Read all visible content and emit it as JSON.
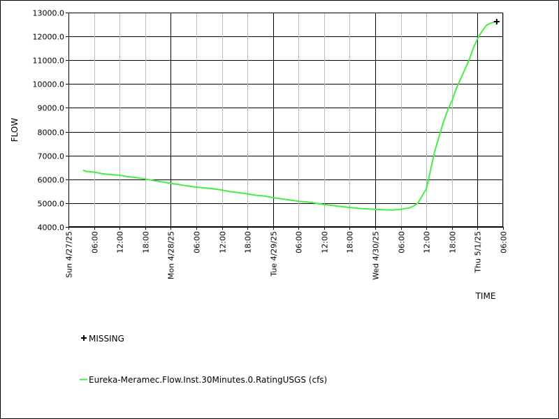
{
  "chart_data": {
    "type": "line",
    "xlabel": "TIME",
    "ylabel": "FLOW",
    "ylim": [
      4000,
      13000
    ],
    "xlim": [
      "2025-04-27T00:00",
      "2025-05-01T06:00"
    ],
    "grid": true,
    "legend_placement": "bottom-left",
    "y_ticks": [
      "4000.0",
      "5000.0",
      "6000.0",
      "7000.0",
      "8000.0",
      "9000.0",
      "10000.0",
      "11000.0",
      "12000.0",
      "13000.0"
    ],
    "x_ticks": [
      {
        "t": "2025-04-27T00:00",
        "label": "Sun 4/27/25",
        "major": true
      },
      {
        "t": "2025-04-27T06:00",
        "label": "06:00",
        "major": false
      },
      {
        "t": "2025-04-27T12:00",
        "label": "12:00",
        "major": false
      },
      {
        "t": "2025-04-27T18:00",
        "label": "18:00",
        "major": false
      },
      {
        "t": "2025-04-28T00:00",
        "label": "Mon 4/28/25",
        "major": true
      },
      {
        "t": "2025-04-28T06:00",
        "label": "06:00",
        "major": false
      },
      {
        "t": "2025-04-28T12:00",
        "label": "12:00",
        "major": false
      },
      {
        "t": "2025-04-28T18:00",
        "label": "18:00",
        "major": false
      },
      {
        "t": "2025-04-29T00:00",
        "label": "Tue 4/29/25",
        "major": true
      },
      {
        "t": "2025-04-29T06:00",
        "label": "06:00",
        "major": false
      },
      {
        "t": "2025-04-29T12:00",
        "label": "12:00",
        "major": false
      },
      {
        "t": "2025-04-29T18:00",
        "label": "18:00",
        "major": false
      },
      {
        "t": "2025-04-30T00:00",
        "label": "Wed 4/30/25",
        "major": true
      },
      {
        "t": "2025-04-30T06:00",
        "label": "06:00",
        "major": false
      },
      {
        "t": "2025-04-30T12:00",
        "label": "12:00",
        "major": false
      },
      {
        "t": "2025-04-30T18:00",
        "label": "18:00",
        "major": false
      },
      {
        "t": "2025-05-01T00:00",
        "label": "Thu 5/1/25",
        "major": true
      },
      {
        "t": "2025-05-01T06:00",
        "label": "06:00",
        "major": false
      }
    ],
    "series": [
      {
        "name": "Eureka-Meramec.Flow.Inst.30Minutes.0.RatingUSGS (cfs)",
        "color": "#44ee44",
        "points": [
          [
            "2025-04-27T03:30",
            6380
          ],
          [
            "2025-04-27T04:00",
            6340
          ],
          [
            "2025-04-27T06:00",
            6300
          ],
          [
            "2025-04-27T08:00",
            6230
          ],
          [
            "2025-04-27T10:00",
            6200
          ],
          [
            "2025-04-27T12:00",
            6170
          ],
          [
            "2025-04-27T14:00",
            6110
          ],
          [
            "2025-04-27T16:00",
            6070
          ],
          [
            "2025-04-27T18:00",
            6010
          ],
          [
            "2025-04-27T20:00",
            5950
          ],
          [
            "2025-04-27T22:00",
            5890
          ],
          [
            "2025-04-28T00:00",
            5830
          ],
          [
            "2025-04-28T02:00",
            5780
          ],
          [
            "2025-04-28T04:00",
            5720
          ],
          [
            "2025-04-28T06:00",
            5670
          ],
          [
            "2025-04-28T08:00",
            5640
          ],
          [
            "2025-04-28T10:00",
            5600
          ],
          [
            "2025-04-28T12:00",
            5550
          ],
          [
            "2025-04-28T14:00",
            5480
          ],
          [
            "2025-04-28T16:00",
            5440
          ],
          [
            "2025-04-28T18:00",
            5390
          ],
          [
            "2025-04-28T20:00",
            5330
          ],
          [
            "2025-04-28T22:00",
            5300
          ],
          [
            "2025-04-29T00:00",
            5230
          ],
          [
            "2025-04-29T02:00",
            5180
          ],
          [
            "2025-04-29T04:00",
            5130
          ],
          [
            "2025-04-29T06:00",
            5080
          ],
          [
            "2025-04-29T08:00",
            5050
          ],
          [
            "2025-04-29T10:00",
            5000
          ],
          [
            "2025-04-29T12:00",
            4940
          ],
          [
            "2025-04-29T14:00",
            4900
          ],
          [
            "2025-04-29T16:00",
            4860
          ],
          [
            "2025-04-29T18:00",
            4820
          ],
          [
            "2025-04-29T20:00",
            4780
          ],
          [
            "2025-04-29T22:00",
            4760
          ],
          [
            "2025-04-30T00:00",
            4740
          ],
          [
            "2025-04-30T02:00",
            4720
          ],
          [
            "2025-04-30T04:00",
            4710
          ],
          [
            "2025-04-30T06:00",
            4740
          ],
          [
            "2025-04-30T08:00",
            4800
          ],
          [
            "2025-04-30T09:00",
            4880
          ],
          [
            "2025-04-30T10:00",
            5000
          ],
          [
            "2025-04-30T11:00",
            5300
          ],
          [
            "2025-04-30T12:00",
            5600
          ],
          [
            "2025-04-30T13:00",
            6400
          ],
          [
            "2025-04-30T14:00",
            7200
          ],
          [
            "2025-04-30T15:00",
            7800
          ],
          [
            "2025-04-30T16:00",
            8400
          ],
          [
            "2025-04-30T17:00",
            8900
          ],
          [
            "2025-04-30T18:00",
            9300
          ],
          [
            "2025-04-30T19:00",
            9800
          ],
          [
            "2025-04-30T20:00",
            10200
          ],
          [
            "2025-04-30T21:00",
            10600
          ],
          [
            "2025-04-30T22:00",
            11000
          ],
          [
            "2025-04-30T23:00",
            11500
          ],
          [
            "2025-05-01T00:00",
            11900
          ],
          [
            "2025-05-01T01:00",
            12200
          ],
          [
            "2025-05-01T02:00",
            12450
          ],
          [
            "2025-05-01T03:00",
            12550
          ],
          [
            "2025-05-01T04:00",
            12600
          ]
        ]
      }
    ],
    "missing": {
      "label": "MISSING",
      "color": "#000000",
      "points": [
        [
          "2025-05-01T04:30",
          12620
        ]
      ]
    }
  }
}
